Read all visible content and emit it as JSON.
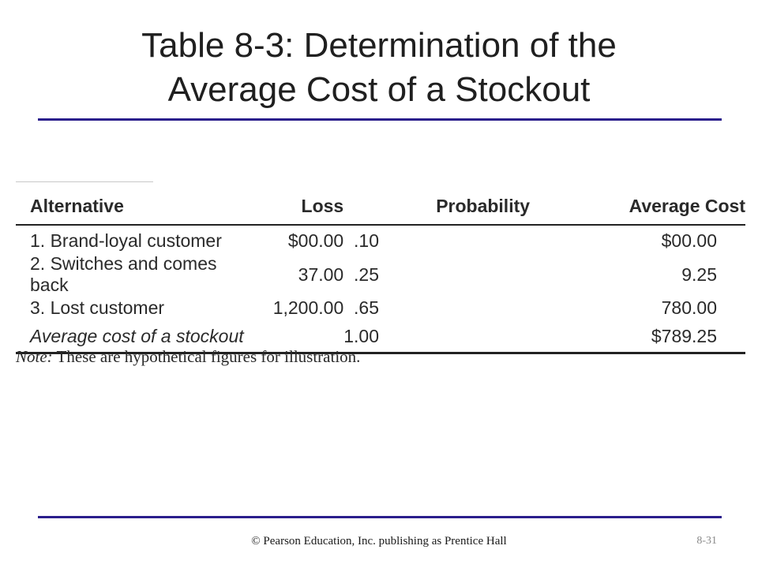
{
  "slide": {
    "title_line1": "Table 8-3:  Determination of the",
    "title_line2": "Average Cost of a Stockout",
    "rule_color": "#2a1e8c"
  },
  "table": {
    "headers": [
      "Alternative",
      "Loss",
      "Probability",
      "Average Cost"
    ],
    "rows": [
      {
        "alternative": "1. Brand-loyal customer",
        "loss": "$00.00",
        "probability": ".10",
        "average_cost": "$00.00"
      },
      {
        "alternative": "2. Switches and comes back",
        "loss": "37.00",
        "probability": ".25",
        "average_cost": "9.25"
      },
      {
        "alternative": "3. Lost customer",
        "loss": "1,200.00",
        "probability": ".65",
        "average_cost": "780.00"
      }
    ],
    "total": {
      "alternative": "Average cost of a stockout",
      "loss": "",
      "probability": "1.00",
      "average_cost": "$789.25"
    }
  },
  "note": {
    "label": "Note:",
    "text": " These are hypothetical figures for illustration."
  },
  "footer": {
    "credit": "© Pearson Education, Inc. publishing as Prentice Hall",
    "page_number": "8-31"
  }
}
